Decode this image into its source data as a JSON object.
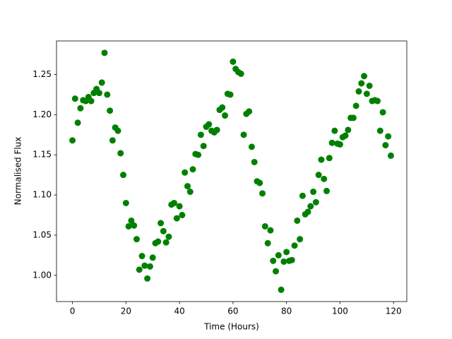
{
  "chart_data": {
    "type": "scatter",
    "xlabel": "Time (Hours)",
    "ylabel": "Normalised Flux",
    "color": "#008000",
    "x": [
      0,
      1,
      2,
      3,
      4,
      5,
      6,
      7,
      8,
      9,
      10,
      11,
      12,
      13,
      14,
      15,
      16,
      17,
      18,
      19,
      20,
      21,
      22,
      23,
      24,
      25,
      26,
      27,
      28,
      29,
      30,
      31,
      32,
      33,
      34,
      35,
      36,
      37,
      38,
      39,
      40,
      41,
      42,
      43,
      44,
      45,
      46,
      47,
      48,
      49,
      50,
      51,
      52,
      53,
      54,
      55,
      56,
      57,
      58,
      59,
      60,
      61,
      62,
      63,
      64,
      65,
      66,
      67,
      68,
      69,
      70,
      71,
      72,
      73,
      74,
      75,
      76,
      77,
      78,
      79,
      80,
      81,
      82,
      83,
      84,
      85,
      86,
      87,
      88,
      89,
      90,
      91,
      92,
      93,
      94,
      95,
      96,
      97,
      98,
      99,
      100,
      101,
      102,
      103,
      104,
      105,
      106,
      107,
      108,
      109,
      110,
      111,
      112,
      113,
      114,
      115,
      116,
      117,
      118,
      119
    ],
    "values": [
      1.168,
      1.22,
      1.19,
      1.208,
      1.218,
      1.217,
      1.222,
      1.217,
      1.227,
      1.232,
      1.227,
      1.24,
      1.277,
      1.225,
      1.205,
      1.168,
      1.184,
      1.18,
      1.152,
      1.125,
      1.09,
      1.061,
      1.068,
      1.062,
      1.045,
      1.007,
      1.024,
      1.012,
      0.996,
      1.011,
      1.022,
      1.04,
      1.042,
      1.065,
      1.055,
      1.041,
      1.048,
      1.088,
      1.09,
      1.071,
      1.086,
      1.075,
      1.128,
      1.111,
      1.104,
      1.132,
      1.151,
      1.15,
      1.175,
      1.161,
      1.185,
      1.188,
      1.18,
      1.178,
      1.181,
      1.206,
      1.209,
      1.199,
      1.226,
      1.225,
      1.266,
      1.257,
      1.253,
      1.251,
      1.175,
      1.201,
      1.204,
      1.16,
      1.141,
      1.117,
      1.115,
      1.102,
      1.061,
      1.04,
      1.056,
      1.018,
      1.005,
      1.025,
      0.982,
      1.017,
      1.029,
      1.018,
      1.019,
      1.037,
      1.068,
      1.045,
      1.099,
      1.076,
      1.079,
      1.086,
      1.104,
      1.091,
      1.125,
      1.144,
      1.12,
      1.105,
      1.146,
      1.165,
      1.18,
      1.164,
      1.163,
      1.172,
      1.174,
      1.181,
      1.196,
      1.196,
      1.211,
      1.229,
      1.239,
      1.248,
      1.226,
      1.236,
      1.217,
      1.218,
      1.217,
      1.18,
      1.203,
      1.162,
      1.173,
      1.149
    ],
    "xlim": [
      -5.95,
      124.95
    ],
    "xticks": [
      0,
      20,
      40,
      60,
      80,
      100,
      120
    ],
    "ylim": [
      0.9673,
      1.2918
    ],
    "yticks": [
      {
        "value": 1.0,
        "label": "1.00"
      },
      {
        "value": 1.05,
        "label": "1.05"
      },
      {
        "value": 1.1,
        "label": "1.10"
      },
      {
        "value": 1.15,
        "label": "1.15"
      },
      {
        "value": 1.2,
        "label": "1.20"
      },
      {
        "value": 1.25,
        "label": "1.25"
      }
    ]
  }
}
